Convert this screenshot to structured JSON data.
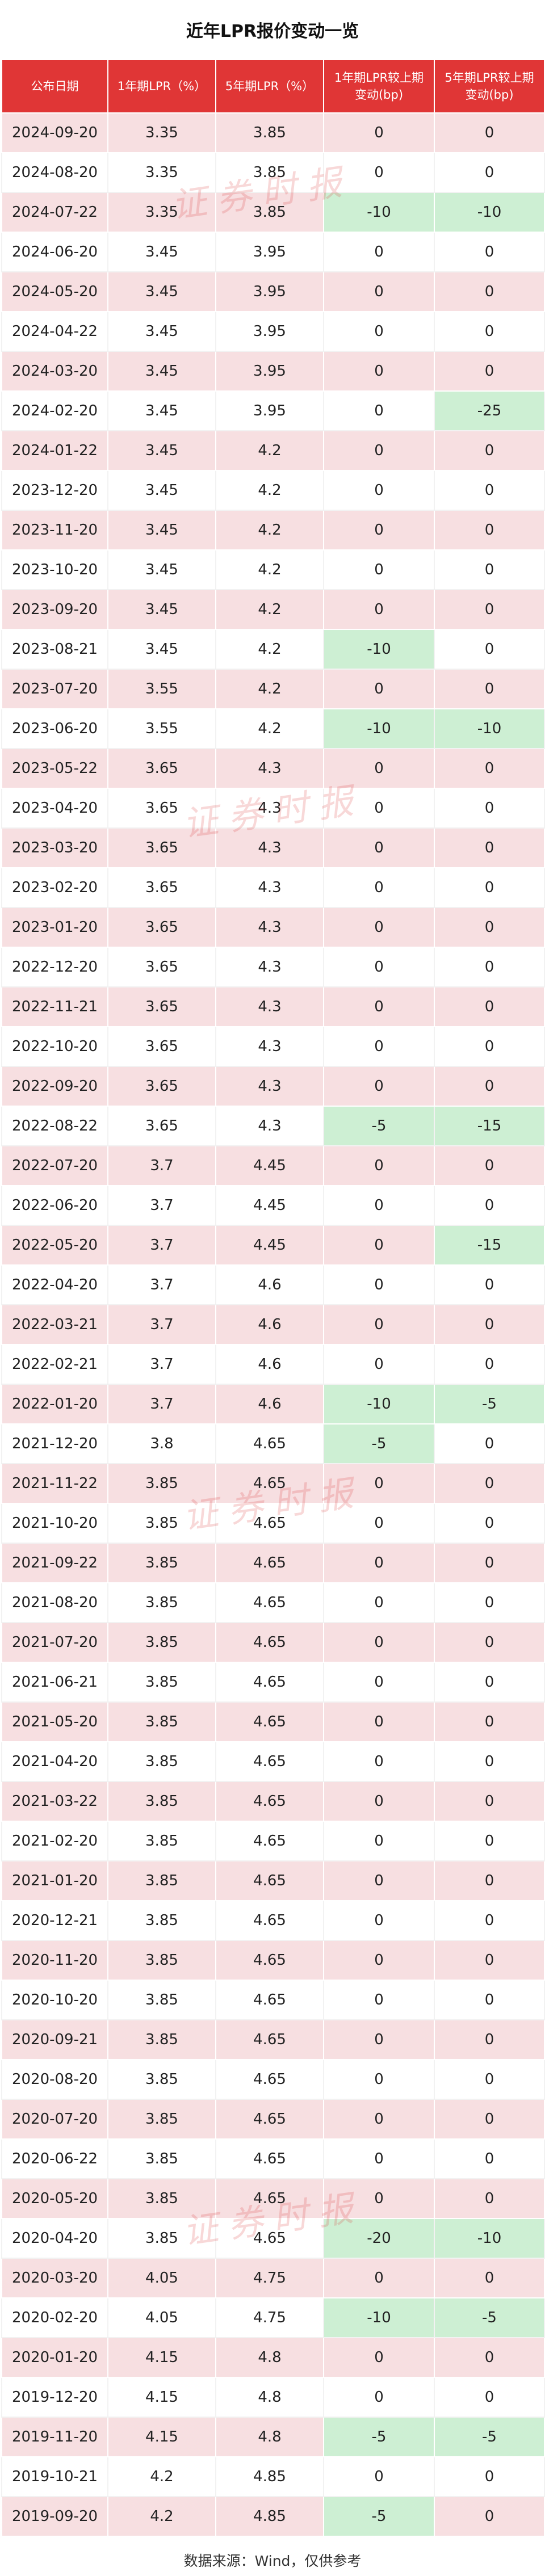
{
  "title": "近年LPR报价变动一览",
  "headers": {
    "date": "公布日期",
    "lpr1y": "1年期LPR（%）",
    "lpr5y": "5年期LPR（%）",
    "chg1y_line1": "1年期LPR较上期",
    "chg1y_line2": "变动(bp)",
    "chg5y_line1": "5年期LPR较上期",
    "chg5y_line2": "变动(bp)"
  },
  "rows": [
    [
      "2024-09-20",
      "3.35",
      "3.85",
      "0",
      "0"
    ],
    [
      "2024-08-20",
      "3.35",
      "3.85",
      "0",
      "0"
    ],
    [
      "2024-07-22",
      "3.35",
      "3.85",
      "-10",
      "-10"
    ],
    [
      "2024-06-20",
      "3.45",
      "3.95",
      "0",
      "0"
    ],
    [
      "2024-05-20",
      "3.45",
      "3.95",
      "0",
      "0"
    ],
    [
      "2024-04-22",
      "3.45",
      "3.95",
      "0",
      "0"
    ],
    [
      "2024-03-20",
      "3.45",
      "3.95",
      "0",
      "0"
    ],
    [
      "2024-02-20",
      "3.45",
      "3.95",
      "0",
      "-25"
    ],
    [
      "2024-01-22",
      "3.45",
      "4.2",
      "0",
      "0"
    ],
    [
      "2023-12-20",
      "3.45",
      "4.2",
      "0",
      "0"
    ],
    [
      "2023-11-20",
      "3.45",
      "4.2",
      "0",
      "0"
    ],
    [
      "2023-10-20",
      "3.45",
      "4.2",
      "0",
      "0"
    ],
    [
      "2023-09-20",
      "3.45",
      "4.2",
      "0",
      "0"
    ],
    [
      "2023-08-21",
      "3.45",
      "4.2",
      "-10",
      "0"
    ],
    [
      "2023-07-20",
      "3.55",
      "4.2",
      "0",
      "0"
    ],
    [
      "2023-06-20",
      "3.55",
      "4.2",
      "-10",
      "-10"
    ],
    [
      "2023-05-22",
      "3.65",
      "4.3",
      "0",
      "0"
    ],
    [
      "2023-04-20",
      "3.65",
      "4.3",
      "0",
      "0"
    ],
    [
      "2023-03-20",
      "3.65",
      "4.3",
      "0",
      "0"
    ],
    [
      "2023-02-20",
      "3.65",
      "4.3",
      "0",
      "0"
    ],
    [
      "2023-01-20",
      "3.65",
      "4.3",
      "0",
      "0"
    ],
    [
      "2022-12-20",
      "3.65",
      "4.3",
      "0",
      "0"
    ],
    [
      "2022-11-21",
      "3.65",
      "4.3",
      "0",
      "0"
    ],
    [
      "2022-10-20",
      "3.65",
      "4.3",
      "0",
      "0"
    ],
    [
      "2022-09-20",
      "3.65",
      "4.3",
      "0",
      "0"
    ],
    [
      "2022-08-22",
      "3.65",
      "4.3",
      "-5",
      "-15"
    ],
    [
      "2022-07-20",
      "3.7",
      "4.45",
      "0",
      "0"
    ],
    [
      "2022-06-20",
      "3.7",
      "4.45",
      "0",
      "0"
    ],
    [
      "2022-05-20",
      "3.7",
      "4.45",
      "0",
      "-15"
    ],
    [
      "2022-04-20",
      "3.7",
      "4.6",
      "0",
      "0"
    ],
    [
      "2022-03-21",
      "3.7",
      "4.6",
      "0",
      "0"
    ],
    [
      "2022-02-21",
      "3.7",
      "4.6",
      "0",
      "0"
    ],
    [
      "2022-01-20",
      "3.7",
      "4.6",
      "-10",
      "-5"
    ],
    [
      "2021-12-20",
      "3.8",
      "4.65",
      "-5",
      "0"
    ],
    [
      "2021-11-22",
      "3.85",
      "4.65",
      "0",
      "0"
    ],
    [
      "2021-10-20",
      "3.85",
      "4.65",
      "0",
      "0"
    ],
    [
      "2021-09-22",
      "3.85",
      "4.65",
      "0",
      "0"
    ],
    [
      "2021-08-20",
      "3.85",
      "4.65",
      "0",
      "0"
    ],
    [
      "2021-07-20",
      "3.85",
      "4.65",
      "0",
      "0"
    ],
    [
      "2021-06-21",
      "3.85",
      "4.65",
      "0",
      "0"
    ],
    [
      "2021-05-20",
      "3.85",
      "4.65",
      "0",
      "0"
    ],
    [
      "2021-04-20",
      "3.85",
      "4.65",
      "0",
      "0"
    ],
    [
      "2021-03-22",
      "3.85",
      "4.65",
      "0",
      "0"
    ],
    [
      "2021-02-20",
      "3.85",
      "4.65",
      "0",
      "0"
    ],
    [
      "2021-01-20",
      "3.85",
      "4.65",
      "0",
      "0"
    ],
    [
      "2020-12-21",
      "3.85",
      "4.65",
      "0",
      "0"
    ],
    [
      "2020-11-20",
      "3.85",
      "4.65",
      "0",
      "0"
    ],
    [
      "2020-10-20",
      "3.85",
      "4.65",
      "0",
      "0"
    ],
    [
      "2020-09-21",
      "3.85",
      "4.65",
      "0",
      "0"
    ],
    [
      "2020-08-20",
      "3.85",
      "4.65",
      "0",
      "0"
    ],
    [
      "2020-07-20",
      "3.85",
      "4.65",
      "0",
      "0"
    ],
    [
      "2020-06-22",
      "3.85",
      "4.65",
      "0",
      "0"
    ],
    [
      "2020-05-20",
      "3.85",
      "4.65",
      "0",
      "0"
    ],
    [
      "2020-04-20",
      "3.85",
      "4.65",
      "-20",
      "-10"
    ],
    [
      "2020-03-20",
      "4.05",
      "4.75",
      "0",
      "0"
    ],
    [
      "2020-02-20",
      "4.05",
      "4.75",
      "-10",
      "-5"
    ],
    [
      "2020-01-20",
      "4.15",
      "4.8",
      "0",
      "0"
    ],
    [
      "2019-12-20",
      "4.15",
      "4.8",
      "0",
      "0"
    ],
    [
      "2019-11-20",
      "4.15",
      "4.8",
      "-5",
      "-5"
    ],
    [
      "2019-10-21",
      "4.2",
      "4.85",
      "0",
      "0"
    ],
    [
      "2019-09-20",
      "4.2",
      "4.85",
      "-5",
      "0"
    ]
  ],
  "highlight_color": "#cdefd3",
  "stripe_color": "#f7dfe1",
  "header_color": "#e03636",
  "watermark_text": "证券时报",
  "footer": "数据来源：Wind，仅供参考"
}
